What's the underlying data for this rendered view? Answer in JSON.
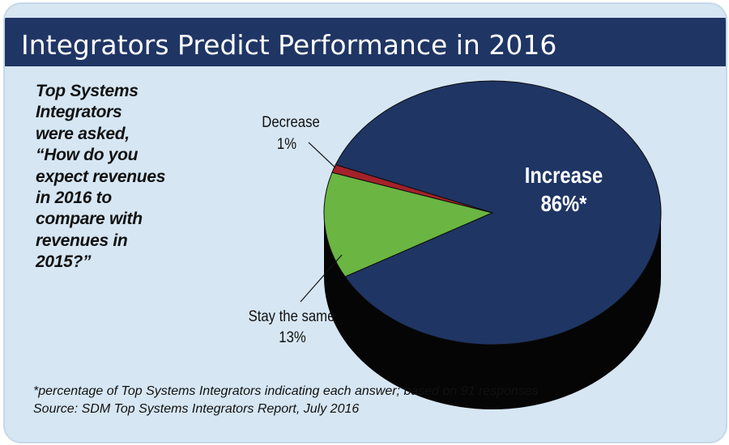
{
  "title": "Integrators Predict Performance in 2016",
  "question_lines": [
    "Top Systems",
    "Integrators",
    "were asked,",
    "“How do you",
    "expect revenues",
    "in 2016 to",
    "compare with",
    "revenues in",
    "2015?”"
  ],
  "chart_data": {
    "type": "pie",
    "title": "Integrators Predict Performance in 2016",
    "slices": [
      {
        "label": "Increase",
        "value": 86,
        "display": "86%*",
        "color": "#1f3564"
      },
      {
        "label": "Decrease",
        "value": 1,
        "display": "1%",
        "color": "#a4222a"
      },
      {
        "label": "Stay the same",
        "value": 13,
        "display": "13%",
        "color": "#6bb543"
      }
    ],
    "style": "3d"
  },
  "footnote": "*percentage of Top Systems Integrators indicating each answer; based on 91 responses",
  "source": "Source: SDM Top Systems Integrators Report, July 2016",
  "colors": {
    "background": "#d6e6f3",
    "title_bar": "#1f3564",
    "pie_side": "#050505"
  }
}
